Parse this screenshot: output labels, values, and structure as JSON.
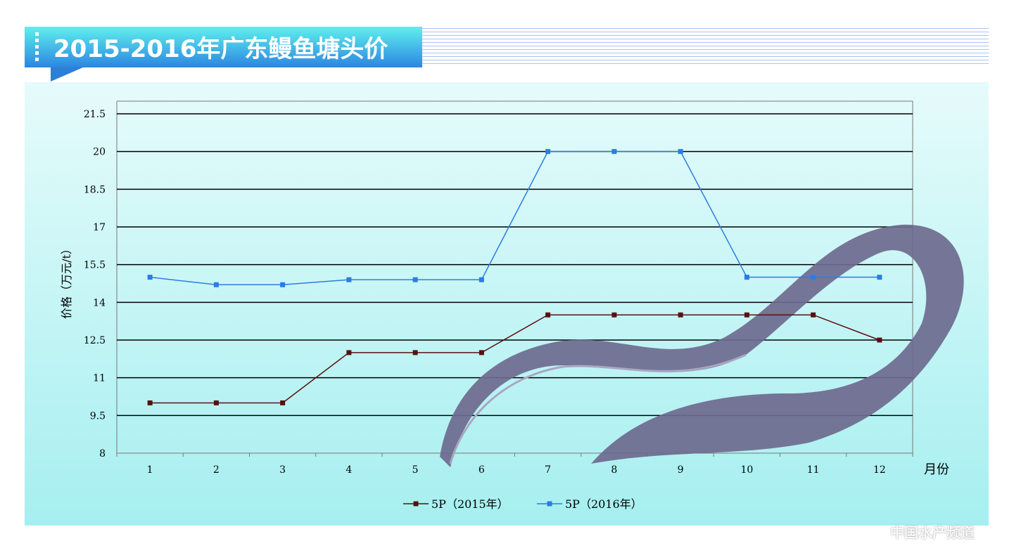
{
  "header": {
    "title": "2015-2016年广东鳗鱼塘头价"
  },
  "watermark": "中国水产频道",
  "chart_data": {
    "type": "line",
    "title": "2015-2016年广东鳗鱼塘头价",
    "xlabel": "月份",
    "ylabel": "价格（万元/t）",
    "categories": [
      "1",
      "2",
      "3",
      "4",
      "5",
      "6",
      "7",
      "8",
      "9",
      "10",
      "11",
      "12"
    ],
    "yticks": [
      "8",
      "9.5",
      "11",
      "12.5",
      "14",
      "15.5",
      "17",
      "18.5",
      "20",
      "21.5"
    ],
    "ylim": [
      8,
      21.5
    ],
    "grid": true,
    "legend": "bottom",
    "series": [
      {
        "name": "5P（2015年）",
        "color": "#5a0f0f",
        "values": [
          10,
          10,
          10,
          12,
          12,
          12,
          13.5,
          13.5,
          13.5,
          13.5,
          13.5,
          12.5
        ]
      },
      {
        "name": "5P（2016年）",
        "color": "#2a7de1",
        "values": [
          15,
          14.7,
          14.7,
          14.9,
          14.9,
          14.9,
          20,
          20,
          20,
          15,
          15,
          15
        ]
      }
    ]
  }
}
